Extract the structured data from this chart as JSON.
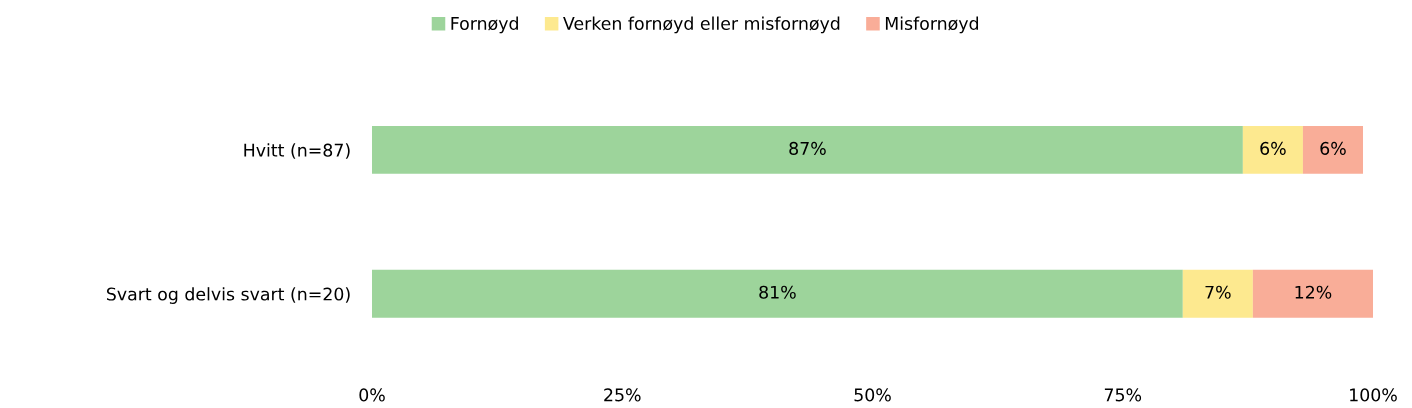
{
  "chart_data": {
    "type": "bar",
    "orientation": "horizontal",
    "stacked": true,
    "categories": [
      "Hvitt (n=87)",
      "Svart og delvis svart (n=20)"
    ],
    "series": [
      {
        "name": "Fornøyd",
        "color": "#9dd49b",
        "values": [
          87,
          81
        ],
        "value_labels": [
          "87%",
          "81%"
        ]
      },
      {
        "name": "Verken fornøyd eller misfornøyd",
        "color": "#fde98f",
        "values": [
          6,
          7
        ],
        "value_labels": [
          "6%",
          "7%"
        ]
      },
      {
        "name": "Misfornøyd",
        "color": "#f9ad98",
        "values": [
          6,
          12
        ],
        "value_labels": [
          "6%",
          "12%"
        ]
      }
    ],
    "xlim": [
      0,
      100
    ],
    "xticks": [
      {
        "value": 0,
        "label": "0%"
      },
      {
        "value": 25,
        "label": "25%"
      },
      {
        "value": 50,
        "label": "50%"
      },
      {
        "value": 75,
        "label": "75%"
      },
      {
        "value": 100,
        "label": "100%"
      }
    ],
    "grid": false,
    "legend": "top"
  }
}
